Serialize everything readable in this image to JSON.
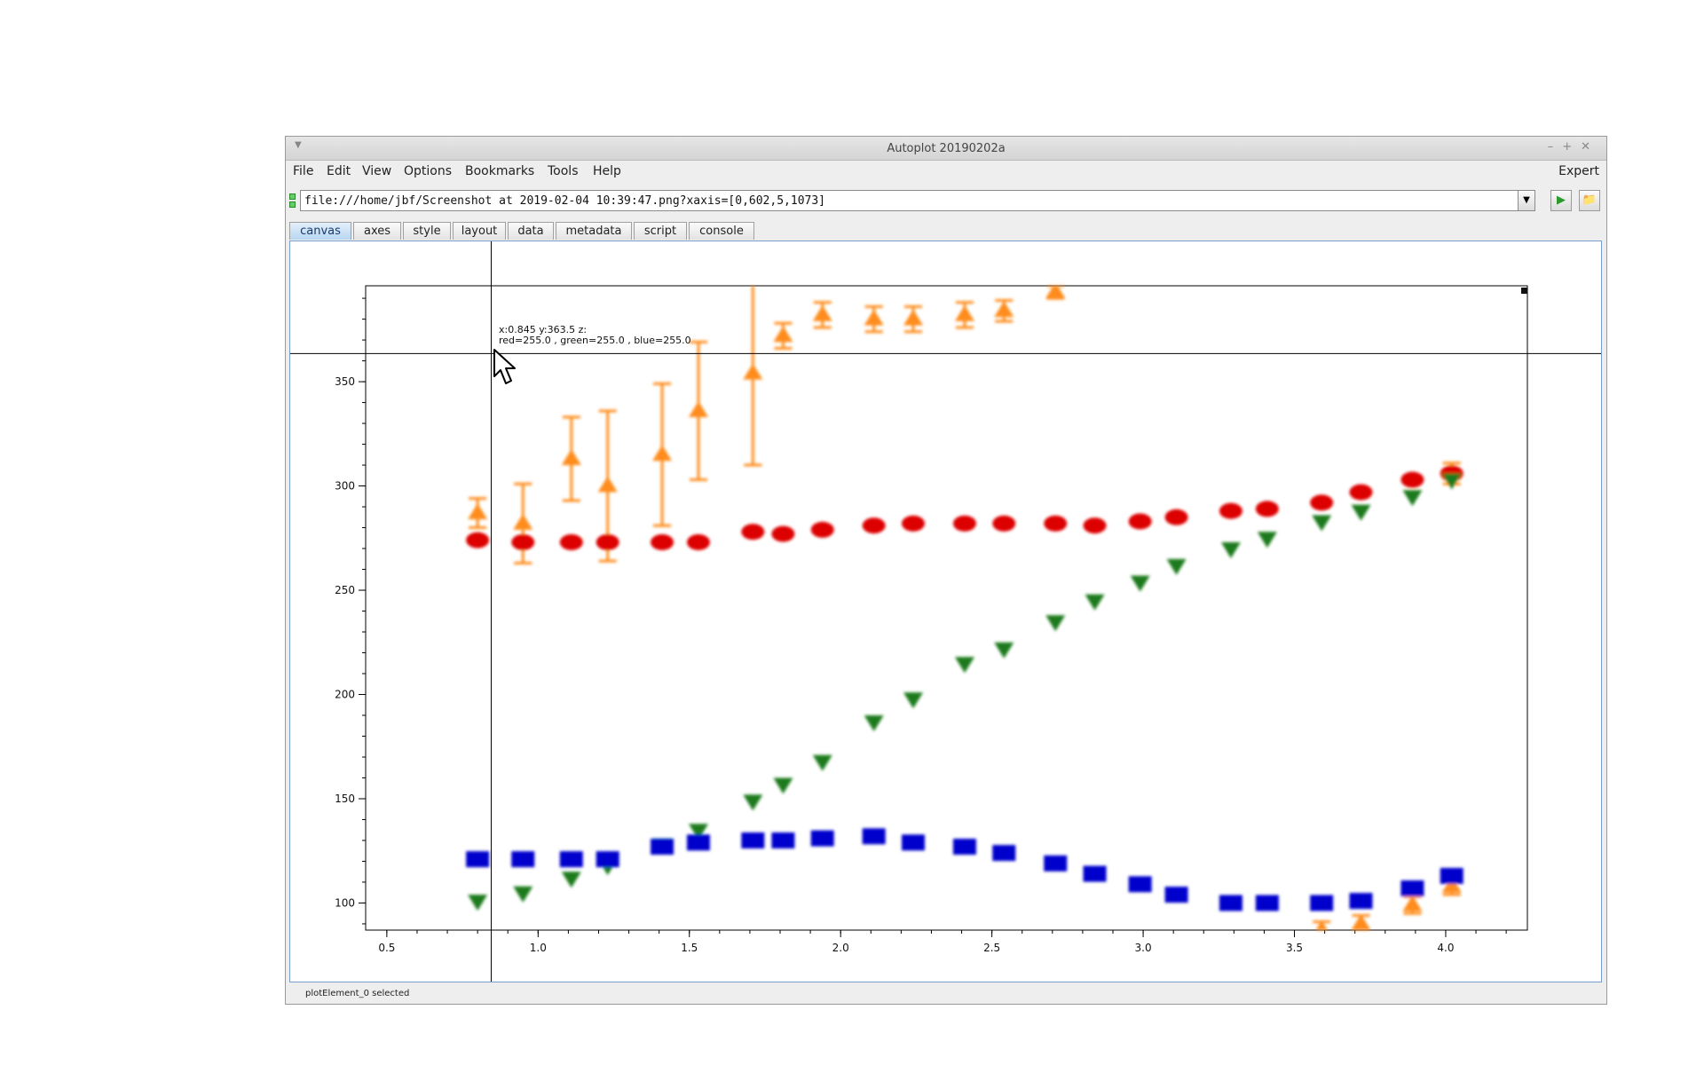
{
  "window": {
    "title": "Autoplot 20190202a"
  },
  "menu": [
    "File",
    "Edit",
    "View",
    "Options",
    "Bookmarks",
    "Tools",
    "Help"
  ],
  "menu_right": "Expert",
  "url": {
    "value": "file:///home/jbf/Screenshot at 2019-02-04 10:39:47.png?xaxis=[0,602,5,1073]"
  },
  "tabs": [
    "canvas",
    "axes",
    "style",
    "layout",
    "data",
    "metadata",
    "script",
    "console"
  ],
  "active_tab": "canvas",
  "crosshair": {
    "x": 0.845,
    "y": 363.5,
    "line1": "x:0.845  y:363.5  z:",
    "line2": "red=255.0 , green=255.0 , blue=255.0"
  },
  "status": "plotElement_0 selected",
  "icons": {
    "url_dropdown": "chevron-down-icon",
    "go": "play-icon",
    "browse": "folder-icon",
    "cursor": "mouse-pointer-icon"
  },
  "chart_data": {
    "type": "scatter",
    "xlim": [
      0.43,
      4.27
    ],
    "ylim": [
      87,
      396
    ],
    "xticks": [
      0.5,
      1.0,
      1.5,
      2.0,
      2.5,
      3.0,
      3.5,
      4.0
    ],
    "xtick_labels": [
      "0.5",
      "1.0",
      "1.5",
      "2.0",
      "2.5",
      "3.0",
      "3.5",
      "4.0"
    ],
    "yticks": [
      100,
      150,
      200,
      250,
      300,
      350
    ],
    "ytick_labels": [
      "100",
      "150",
      "200",
      "250",
      "300",
      "350"
    ],
    "series": [
      {
        "color": "#ff8c1a",
        "marker": "triangle-up",
        "points": [
          {
            "x": 0.8,
            "y": 287,
            "err": 7
          },
          {
            "x": 0.95,
            "y": 282,
            "err": 19
          },
          {
            "x": 1.11,
            "y": 313,
            "err": 20
          },
          {
            "x": 1.23,
            "y": 300,
            "err": 36
          },
          {
            "x": 1.41,
            "y": 315,
            "err": 34
          },
          {
            "x": 1.53,
            "y": 336,
            "err": 33
          },
          {
            "x": 1.71,
            "y": 354,
            "err": 44
          },
          {
            "x": 1.81,
            "y": 372,
            "err": 6
          },
          {
            "x": 1.94,
            "y": 382,
            "err": 6
          },
          {
            "x": 2.11,
            "y": 380,
            "err": 6
          },
          {
            "x": 2.24,
            "y": 380,
            "err": 6
          },
          {
            "x": 2.41,
            "y": 382,
            "err": 6
          },
          {
            "x": 2.54,
            "y": 384,
            "err": 5
          },
          {
            "x": 2.71,
            "y": 393,
            "err": 3
          },
          {
            "x": 3.59,
            "y": 87,
            "err": 4
          },
          {
            "x": 3.72,
            "y": 90,
            "err": 4
          },
          {
            "x": 3.89,
            "y": 99,
            "err": 4
          },
          {
            "x": 4.02,
            "y": 108,
            "err": 4
          },
          {
            "x": 4.02,
            "y": 306,
            "err": 5
          }
        ]
      },
      {
        "color": "#dd0000",
        "marker": "circle",
        "points": [
          {
            "x": 0.8,
            "y": 274
          },
          {
            "x": 0.95,
            "y": 273
          },
          {
            "x": 1.11,
            "y": 273
          },
          {
            "x": 1.23,
            "y": 273
          },
          {
            "x": 1.41,
            "y": 273
          },
          {
            "x": 1.53,
            "y": 273
          },
          {
            "x": 1.71,
            "y": 278
          },
          {
            "x": 1.81,
            "y": 277
          },
          {
            "x": 1.94,
            "y": 279
          },
          {
            "x": 2.11,
            "y": 281
          },
          {
            "x": 2.24,
            "y": 282
          },
          {
            "x": 2.41,
            "y": 282
          },
          {
            "x": 2.54,
            "y": 282
          },
          {
            "x": 2.71,
            "y": 282
          },
          {
            "x": 2.84,
            "y": 281
          },
          {
            "x": 2.99,
            "y": 283
          },
          {
            "x": 3.11,
            "y": 285
          },
          {
            "x": 3.29,
            "y": 288
          },
          {
            "x": 3.41,
            "y": 289
          },
          {
            "x": 3.59,
            "y": 292
          },
          {
            "x": 3.72,
            "y": 297
          },
          {
            "x": 3.89,
            "y": 303
          },
          {
            "x": 4.02,
            "y": 306
          }
        ]
      },
      {
        "color": "#1a7a1a",
        "marker": "triangle-down",
        "points": [
          {
            "x": 0.8,
            "y": 101
          },
          {
            "x": 0.95,
            "y": 105
          },
          {
            "x": 1.11,
            "y": 112
          },
          {
            "x": 1.23,
            "y": 118
          },
          {
            "x": 1.41,
            "y": 128
          },
          {
            "x": 1.53,
            "y": 135
          },
          {
            "x": 1.71,
            "y": 149
          },
          {
            "x": 1.81,
            "y": 157
          },
          {
            "x": 1.94,
            "y": 168
          },
          {
            "x": 2.11,
            "y": 187
          },
          {
            "x": 2.24,
            "y": 198
          },
          {
            "x": 2.41,
            "y": 215
          },
          {
            "x": 2.54,
            "y": 222
          },
          {
            "x": 2.71,
            "y": 235
          },
          {
            "x": 2.84,
            "y": 245
          },
          {
            "x": 2.99,
            "y": 254
          },
          {
            "x": 3.11,
            "y": 262
          },
          {
            "x": 3.29,
            "y": 270
          },
          {
            "x": 3.41,
            "y": 275
          },
          {
            "x": 3.59,
            "y": 283
          },
          {
            "x": 3.72,
            "y": 288
          },
          {
            "x": 3.89,
            "y": 295
          },
          {
            "x": 4.02,
            "y": 303
          }
        ]
      },
      {
        "color": "#0000cc",
        "marker": "square",
        "points": [
          {
            "x": 0.8,
            "y": 121
          },
          {
            "x": 0.95,
            "y": 121
          },
          {
            "x": 1.11,
            "y": 121
          },
          {
            "x": 1.23,
            "y": 121
          },
          {
            "x": 1.41,
            "y": 127
          },
          {
            "x": 1.53,
            "y": 129
          },
          {
            "x": 1.71,
            "y": 130
          },
          {
            "x": 1.81,
            "y": 130
          },
          {
            "x": 1.94,
            "y": 131
          },
          {
            "x": 2.11,
            "y": 132
          },
          {
            "x": 2.24,
            "y": 129
          },
          {
            "x": 2.41,
            "y": 127
          },
          {
            "x": 2.54,
            "y": 124
          },
          {
            "x": 2.71,
            "y": 119
          },
          {
            "x": 2.84,
            "y": 114
          },
          {
            "x": 2.99,
            "y": 109
          },
          {
            "x": 3.11,
            "y": 104
          },
          {
            "x": 3.29,
            "y": 100
          },
          {
            "x": 3.41,
            "y": 100
          },
          {
            "x": 3.59,
            "y": 100
          },
          {
            "x": 3.72,
            "y": 101
          },
          {
            "x": 3.89,
            "y": 107
          },
          {
            "x": 4.02,
            "y": 113
          }
        ]
      }
    ]
  }
}
